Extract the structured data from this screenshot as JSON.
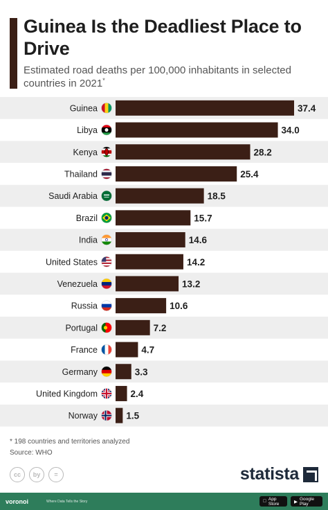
{
  "header": {
    "title": "Guinea Is the Deadliest Place to Drive",
    "subtitle": "Estimated road deaths per 100,000 inhabitants in selected countries in 2021",
    "subtitle_marker": "*"
  },
  "notes": {
    "footnote": "* 198 countries and territories analyzed",
    "source": "Source: WHO"
  },
  "license_icons": [
    "cc",
    "by",
    "="
  ],
  "brand": {
    "name": "statista",
    "footer_logo": "voronoi",
    "footer_tagline": "Where Data Tells the Story",
    "app_store": "App Store",
    "google_play": "Google Play"
  },
  "colors": {
    "bar": "#3b1f16",
    "band": "#eeeeee",
    "accent": "#3b1f16",
    "footer": "#2e7d5b"
  },
  "chart_data": {
    "type": "bar",
    "orientation": "horizontal",
    "categories": [
      "Guinea",
      "Libya",
      "Kenya",
      "Thailand",
      "Saudi Arabia",
      "Brazil",
      "India",
      "United States",
      "Venezuela",
      "Russia",
      "Portugal",
      "France",
      "Germany",
      "United Kingdom",
      "Norway"
    ],
    "values": [
      37.4,
      34.0,
      28.2,
      25.4,
      18.5,
      15.7,
      14.6,
      14.2,
      13.2,
      10.6,
      7.2,
      4.7,
      3.3,
      2.4,
      1.5
    ],
    "value_labels": [
      "37.4",
      "34.0",
      "28.2",
      "25.4",
      "18.5",
      "15.7",
      "14.6",
      "14.2",
      "13.2",
      "10.6",
      "7.2",
      "4.7",
      "3.3",
      "2.4",
      "1.5"
    ],
    "flags": [
      "guinea-flag-icon",
      "libya-flag-icon",
      "kenya-flag-icon",
      "thailand-flag-icon",
      "saudi-arabia-flag-icon",
      "brazil-flag-icon",
      "india-flag-icon",
      "united-states-flag-icon",
      "venezuela-flag-icon",
      "russia-flag-icon",
      "portugal-flag-icon",
      "france-flag-icon",
      "germany-flag-icon",
      "united-kingdom-flag-icon",
      "norway-flag-icon"
    ],
    "xlim": [
      0,
      37.4
    ],
    "grid": false,
    "legend": "none"
  }
}
